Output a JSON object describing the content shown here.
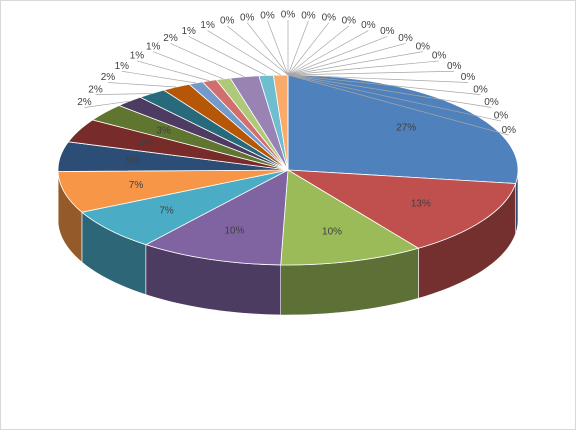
{
  "chart_data": {
    "type": "pie",
    "three_d": true,
    "values": [
      27,
      13,
      10,
      10,
      7,
      7,
      5,
      4,
      3,
      2,
      2,
      2,
      1,
      1,
      1,
      2,
      1,
      1,
      0,
      0,
      0,
      0,
      0,
      0,
      0,
      0,
      0,
      0,
      0,
      0,
      0,
      0,
      0,
      0,
      0,
      0
    ],
    "value_labels": [
      "27%",
      "13%",
      "10%",
      "10%",
      "7%",
      "7%",
      "5%",
      "4%",
      "3%",
      "2%",
      "2%",
      "2%",
      "1%",
      "1%",
      "1%",
      "2%",
      "1%",
      "1%",
      "0%",
      "0%",
      "0%",
      "0%",
      "0%",
      "0%",
      "0%",
      "0%",
      "0%",
      "0%",
      "0%",
      "0%",
      "0%",
      "0%",
      "0%",
      "0%",
      "0%",
      "0%"
    ],
    "colors": [
      "#4f81bd",
      "#c0504d",
      "#9bbb59",
      "#8064a2",
      "#4bacc6",
      "#f79646",
      "#2c4d75",
      "#772c2a",
      "#5f7530",
      "#4d3b62",
      "#276a7c",
      "#b65708",
      "#729aca",
      "#d06f6d",
      "#afc97a",
      "#9983b5",
      "#6fbdd1",
      "#f9ab6b",
      "#3a6ea5",
      "#a33f3c",
      "#7f9a45",
      "#664f87",
      "#3690a8",
      "#d97a2a",
      "#95b3d7",
      "#da9694",
      "#c4d79b",
      "#b1a0c7",
      "#92cddc",
      "#fabf8f",
      "#1f3858",
      "#5a1f1e",
      "#475a23",
      "#3a2c4a",
      "#1c4f5d",
      "#894106"
    ]
  }
}
